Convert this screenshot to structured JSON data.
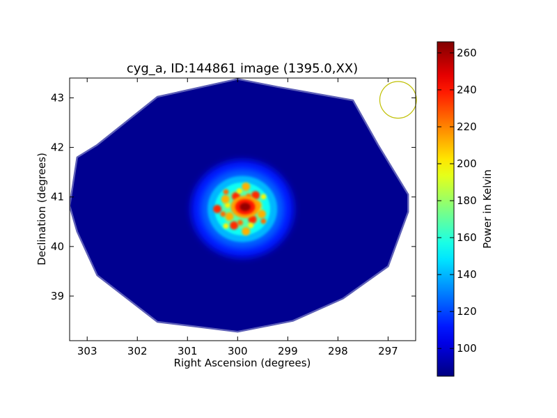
{
  "chart_data": {
    "type": "heatmap",
    "title": "cyg_a, ID:144861 image (1395.0,XX)",
    "xlabel": "Right Ascension (degrees)",
    "ylabel": "Declination (degrees)",
    "xlim": [
      303.35,
      296.45
    ],
    "ylim": [
      38.1,
      43.4
    ],
    "x_ticks": [
      303,
      302,
      301,
      300,
      299,
      298,
      297
    ],
    "y_ticks": [
      39,
      40,
      41,
      42,
      43
    ],
    "colorbar": {
      "label": "Power in Kelvin",
      "range": [
        85,
        266
      ],
      "ticks": [
        100,
        120,
        140,
        160,
        180,
        200,
        220,
        240,
        260
      ],
      "colormap": "jet"
    },
    "background_level": 88,
    "source": {
      "name": "cyg_a",
      "ra": 299.85,
      "dec": 40.8,
      "peak_power": 262
    },
    "footprint_polygon": [
      [
        300.0,
        43.38
      ],
      [
        299.2,
        43.22
      ],
      [
        297.7,
        42.95
      ],
      [
        297.2,
        42.05
      ],
      [
        296.6,
        41.05
      ],
      [
        296.6,
        40.7
      ],
      [
        297.0,
        39.6
      ],
      [
        297.9,
        38.95
      ],
      [
        298.9,
        38.5
      ],
      [
        300.0,
        38.28
      ],
      [
        301.6,
        38.48
      ],
      [
        302.8,
        39.42
      ],
      [
        303.2,
        40.3
      ],
      [
        303.35,
        40.82
      ],
      [
        303.2,
        41.8
      ],
      [
        302.8,
        42.05
      ],
      [
        301.6,
        43.02
      ]
    ],
    "beam": {
      "ra": 296.8,
      "dec": 42.96,
      "radius_deg": 0.37,
      "color": "#bfbf00"
    }
  }
}
